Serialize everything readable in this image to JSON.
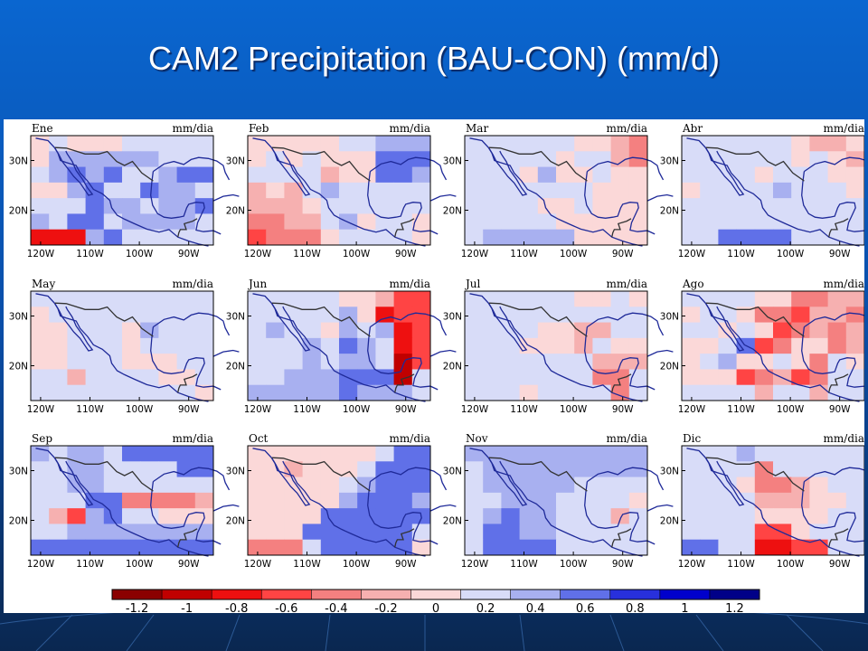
{
  "slide": {
    "title": "CAM2 Precipitation (BAU-CON) (mm/d)",
    "colors": {
      "background_top": "#0a5fc8",
      "background_bottom": "#0b2a5a",
      "panel_bg": "#ffffff"
    }
  },
  "chart_data": {
    "type": "heatmap",
    "title": "CAM2 Precipitation (BAU-CON) (mm/d)",
    "units_label": "mm/dia",
    "x_ticks": [
      "120W",
      "110W",
      "100W",
      "90W"
    ],
    "y_ticks": [
      "30N",
      "20N"
    ],
    "colorbar": {
      "tick_labels": [
        "-1.2",
        "-1",
        "-0.8",
        "-0.6",
        "-0.4",
        "-0.2",
        "0",
        "0.2",
        "0.4",
        "0.6",
        "0.8",
        "1",
        "1.2"
      ],
      "colors": [
        "#8b0000",
        "#c00000",
        "#ee1010",
        "#ff4444",
        "#f48080",
        "#f6b0b0",
        "#fbd8d8",
        "#d8dcf8",
        "#a8b0f0",
        "#6070e8",
        "#2830dc",
        "#0000cc",
        "#000088"
      ]
    },
    "panels": [
      {
        "month": "Ene",
        "grid": [
          "6766677777",
          "6888888777",
          "7898977899",
          "6689779887",
          "7779887889",
          "8799788887",
          "2228977777"
        ]
      },
      {
        "month": "Feb",
        "grid": [
          "6666677888",
          "6767666999",
          "7777566998",
          "5657877777",
          "5556777777",
          "4455786776",
          "3444677776"
        ]
      },
      {
        "month": "Mar",
        "grid": [
          "7777776654",
          "7777767754",
          "7776866766",
          "7777777666",
          "7777667666",
          "7777766666",
          "7888886666"
        ]
      },
      {
        "month": "Abr",
        "grid": [
          "7777776556",
          "7777776765",
          "7777677766",
          "6777787776",
          "7777777777",
          "7777777777",
          "7799997777"
        ]
      },
      {
        "month": "May",
        "grid": [
          "7777777777",
          "6777777777",
          "6677768777",
          "6677767777",
          "6677766677",
          "7757777667",
          "7777777776"
        ]
      },
      {
        "month": "Jun",
        "grid": [
          "7777766533",
          "7777786233",
          "7877687823",
          "7778798723",
          "7778788713",
          "7788899917",
          "8888898887"
        ]
      },
      {
        "month": "Jul",
        "grid": [
          "7777776676",
          "7777777777",
          "7777665577",
          "7776665766",
          "7777777555",
          "7777777447",
          "7776777747"
        ]
      },
      {
        "month": "Ago",
        "grid": [
          "7777664455",
          "6776443554",
          "7767634545",
          "6679346645",
          "6786676476",
          "6663453477",
          "7777577577"
        ]
      },
      {
        "month": "Sep",
        "grid": [
          "8788799999",
          "7788777799",
          "7788777777",
          "7779944445",
          "7538977666",
          "7788888888",
          "9999999999"
        ]
      },
      {
        "month": "Oct",
        "grid": [
          "6666666799",
          "6656667999",
          "6666678999",
          "6666689998",
          "6666999999",
          "6669999997",
          "4447999996"
        ]
      },
      {
        "month": "Nov",
        "grid": [
          "8888888888",
          "7888888888",
          "7888887777",
          "7788877776",
          "7898877757",
          "7998877777",
          "7999977777"
        ]
      },
      {
        "month": "Dic",
        "grid": [
          "7778777777",
          "7777477777",
          "7776445677",
          "7777555667",
          "7777666677",
          "7777336777",
          "9977223377"
        ]
      }
    ]
  }
}
